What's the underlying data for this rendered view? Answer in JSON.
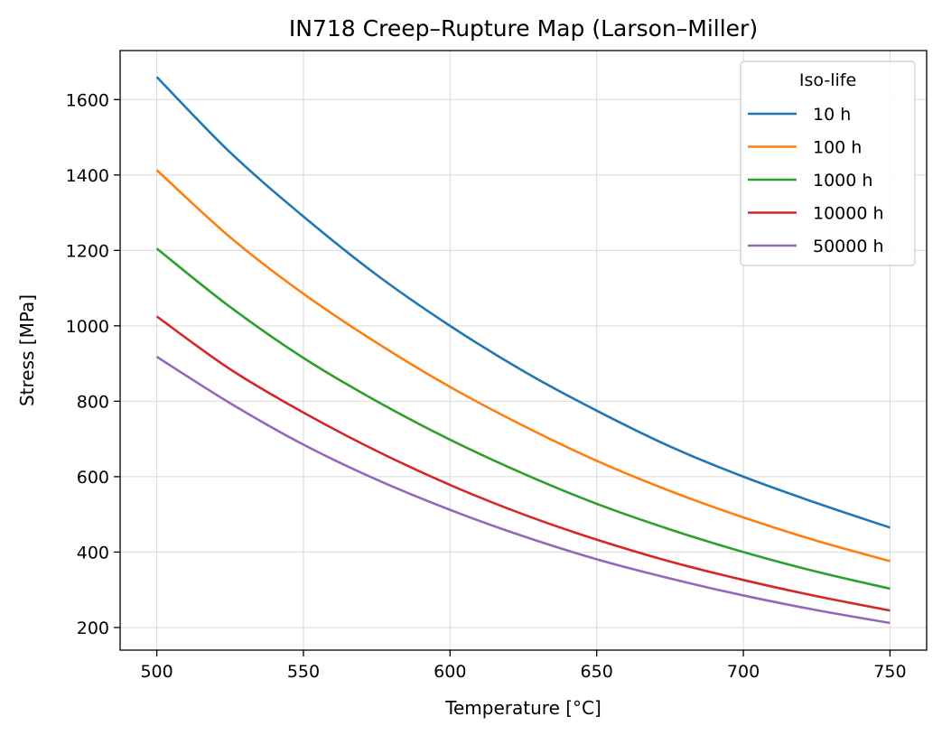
{
  "chart_data": {
    "type": "line",
    "title": "IN718 Creep–Rupture Map (Larson–Miller)",
    "xlabel": "Temperature [°C]",
    "ylabel": "Stress [MPa]",
    "xlim": [
      487.5,
      762.5
    ],
    "ylim": [
      140,
      1730
    ],
    "xticks": [
      500,
      550,
      600,
      650,
      700,
      750
    ],
    "yticks": [
      200,
      400,
      600,
      800,
      1000,
      1200,
      1400,
      1600
    ],
    "x": [
      500,
      525,
      550,
      575,
      600,
      625,
      650,
      675,
      700,
      725,
      750
    ],
    "series": [
      {
        "name": "10 h",
        "color": "#1f77b4",
        "values": [
          1660,
          1460,
          1290,
          1135,
          1000,
          880,
          775,
          680,
          600,
          530,
          465
        ]
      },
      {
        "name": "100 h",
        "color": "#ff7f0e",
        "values": [
          1413,
          1235,
          1085,
          955,
          838,
          735,
          642,
          562,
          492,
          430,
          376
        ]
      },
      {
        "name": "1000 h",
        "color": "#2ca02c",
        "values": [
          1205,
          1050,
          915,
          800,
          698,
          608,
          528,
          460,
          400,
          348,
          303
        ]
      },
      {
        "name": "10000 h",
        "color": "#d62728",
        "values": [
          1025,
          885,
          770,
          668,
          578,
          500,
          433,
          375,
          326,
          283,
          245
        ]
      },
      {
        "name": "50000 h",
        "color": "#9467bd",
        "values": [
          918,
          795,
          685,
          592,
          512,
          442,
          381,
          330,
          285,
          246,
          212
        ]
      }
    ],
    "grid": true,
    "legend": {
      "title": "Iso-life",
      "position": "top-right"
    }
  }
}
